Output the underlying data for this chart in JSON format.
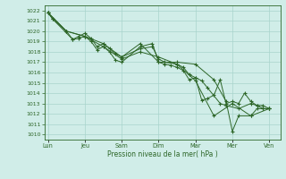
{
  "title": "",
  "xlabel": "Pression niveau de la mer( hPa )",
  "bg_color": "#d0ede8",
  "grid_color": "#a8d4cc",
  "line_color": "#2d6628",
  "ylim": [
    1009.5,
    1022.5
  ],
  "yticks": [
    1010,
    1011,
    1012,
    1013,
    1014,
    1015,
    1016,
    1017,
    1018,
    1019,
    1020,
    1021,
    1022
  ],
  "x_labels": [
    "Lun",
    "Jeu",
    "Sam",
    "Dim",
    "Mar",
    "Mer",
    "Ven"
  ],
  "x_positions": [
    0,
    1,
    2,
    3,
    4,
    5,
    6
  ],
  "xlim": [
    -0.1,
    6.3
  ],
  "series": [
    {
      "x": [
        0.0,
        0.12,
        0.5,
        0.67,
        0.83,
        1.0,
        1.17,
        1.33,
        1.5,
        1.67,
        1.83,
        2.0,
        2.5,
        2.83,
        3.0,
        3.17,
        3.33,
        3.5,
        3.67,
        3.83,
        4.0,
        4.17,
        4.33,
        4.67,
        4.83,
        5.17,
        5.5,
        5.67,
        5.83,
        6.0
      ],
      "y": [
        1021.8,
        1021.2,
        1020.0,
        1019.2,
        1019.3,
        1019.5,
        1019.0,
        1018.2,
        1018.5,
        1018.0,
        1017.2,
        1017.0,
        1018.5,
        1018.8,
        1017.0,
        1016.8,
        1016.7,
        1016.5,
        1016.2,
        1015.3,
        1015.5,
        1015.2,
        1014.5,
        1013.0,
        1012.8,
        1012.5,
        1013.0,
        1012.8,
        1012.5,
        1012.5
      ]
    },
    {
      "x": [
        0.0,
        0.12,
        0.67,
        0.83,
        1.0,
        1.17,
        1.33,
        1.5,
        1.67,
        1.83,
        2.0,
        2.5,
        2.83,
        3.0,
        3.17,
        3.5,
        3.67,
        3.83,
        4.0,
        4.17,
        4.33,
        4.5,
        4.67,
        4.83,
        5.0,
        5.17,
        5.33,
        5.5,
        5.67,
        5.83,
        6.0
      ],
      "y": [
        1021.8,
        1021.2,
        1019.2,
        1019.5,
        1019.8,
        1019.3,
        1018.5,
        1018.8,
        1018.3,
        1017.8,
        1017.5,
        1018.3,
        1018.5,
        1017.3,
        1017.0,
        1016.8,
        1016.5,
        1015.8,
        1015.5,
        1013.3,
        1013.5,
        1013.8,
        1015.3,
        1013.0,
        1013.2,
        1013.0,
        1014.0,
        1013.2,
        1012.8,
        1012.8,
        1012.5
      ]
    },
    {
      "x": [
        0.0,
        0.5,
        1.0,
        1.5,
        2.0,
        2.5,
        3.0,
        3.5,
        4.0,
        4.5,
        5.0,
        5.5,
        6.0
      ],
      "y": [
        1021.8,
        1020.0,
        1019.5,
        1018.5,
        1017.3,
        1018.0,
        1017.5,
        1016.8,
        1015.2,
        1011.8,
        1013.0,
        1011.8,
        1012.5
      ]
    },
    {
      "x": [
        0.0,
        0.5,
        1.0,
        1.5,
        2.0,
        2.5,
        3.0,
        3.5,
        4.0,
        4.5,
        4.83,
        5.0,
        5.17,
        5.5,
        5.67,
        5.83,
        6.0
      ],
      "y": [
        1021.8,
        1020.0,
        1019.5,
        1018.8,
        1017.5,
        1018.8,
        1017.0,
        1017.0,
        1016.8,
        1015.3,
        1013.2,
        1010.3,
        1011.8,
        1011.8,
        1012.5,
        1012.5,
        1012.5
      ]
    }
  ]
}
